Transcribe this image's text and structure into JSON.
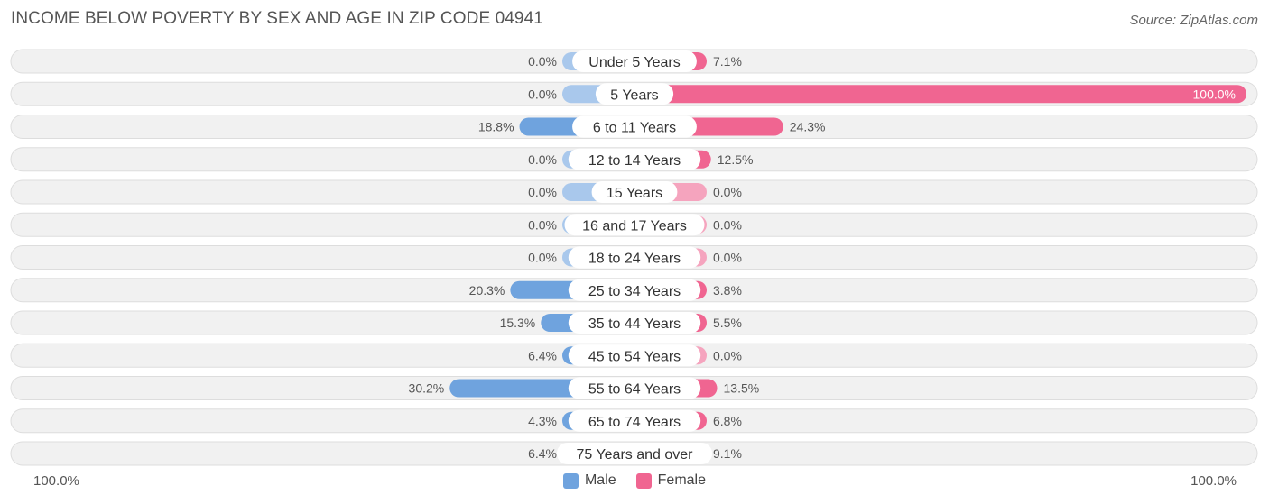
{
  "title": "INCOME BELOW POVERTY BY SEX AND AGE IN ZIP CODE 04941",
  "source": "Source: ZipAtlas.com",
  "colors": {
    "male": "#6fa3de",
    "male_light": "#a9c8ec",
    "female": "#f06591",
    "female_light": "#f5a4be",
    "row_bg": "#f1f1f1",
    "row_border": "#dddddd"
  },
  "legend": {
    "male": "Male",
    "female": "Female"
  },
  "axis": {
    "left_label": "100.0%",
    "right_label": "100.0%"
  },
  "chart_data": {
    "type": "bar",
    "orientation": "horizontal-diverging",
    "categories": [
      "Under 5 Years",
      "5 Years",
      "6 to 11 Years",
      "12 to 14 Years",
      "15 Years",
      "16 and 17 Years",
      "18 to 24 Years",
      "25 to 34 Years",
      "35 to 44 Years",
      "45 to 54 Years",
      "55 to 64 Years",
      "65 to 74 Years",
      "75 Years and over"
    ],
    "series": [
      {
        "name": "Male",
        "values": [
          0.0,
          0.0,
          18.8,
          0.0,
          0.0,
          0.0,
          0.0,
          20.3,
          15.3,
          6.4,
          30.2,
          4.3,
          6.4
        ],
        "labels": [
          "0.0%",
          "0.0%",
          "18.8%",
          "0.0%",
          "0.0%",
          "0.0%",
          "0.0%",
          "20.3%",
          "15.3%",
          "6.4%",
          "30.2%",
          "4.3%",
          "6.4%"
        ]
      },
      {
        "name": "Female",
        "values": [
          7.1,
          100.0,
          24.3,
          12.5,
          0.0,
          0.0,
          0.0,
          3.8,
          5.5,
          0.0,
          13.5,
          6.8,
          9.1
        ],
        "labels": [
          "7.1%",
          "100.0%",
          "24.3%",
          "12.5%",
          "0.0%",
          "0.0%",
          "0.0%",
          "3.8%",
          "5.5%",
          "0.0%",
          "13.5%",
          "6.8%",
          "9.1%"
        ]
      }
    ],
    "xlim": [
      0,
      100
    ],
    "legend_position": "bottom-center"
  }
}
